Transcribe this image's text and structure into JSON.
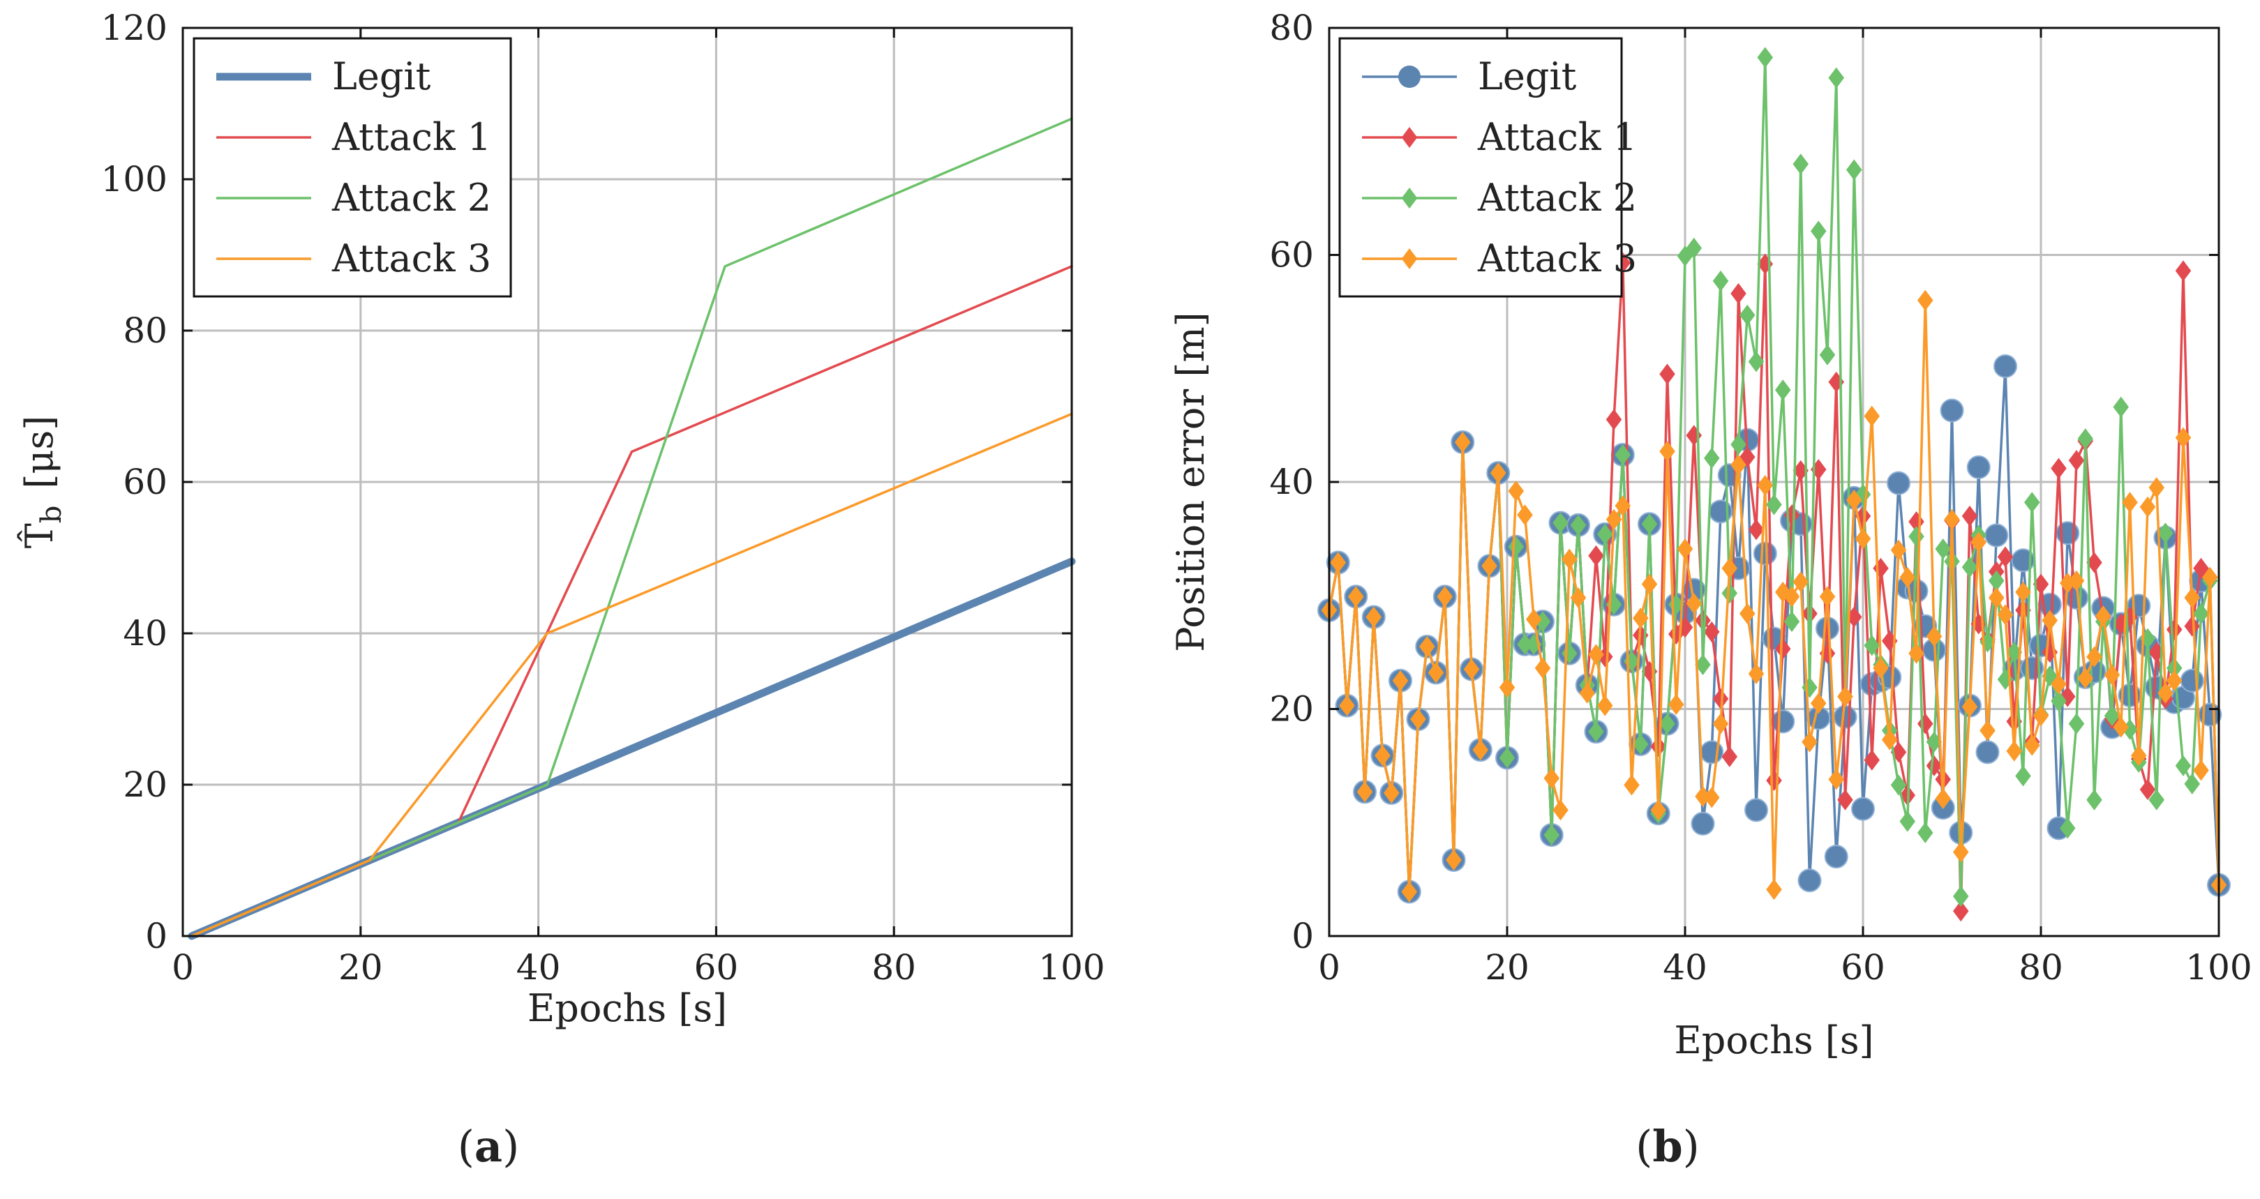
{
  "chart_data": [
    {
      "id": "a",
      "type": "line",
      "panel_label": {
        "open": "(",
        "letter": "a",
        "close": ")"
      },
      "xlabel": "Epochs [s]",
      "ylabel": {
        "symbol": "T̂",
        "subscript": "b",
        "unit": "[μs]"
      },
      "xlim": [
        0,
        100
      ],
      "ylim": [
        0,
        120
      ],
      "xticks": [
        0,
        20,
        40,
        60,
        80,
        100
      ],
      "yticks": [
        0,
        20,
        40,
        60,
        80,
        100,
        120
      ],
      "grid": true,
      "legend_position": "top-left",
      "series": [
        {
          "name": "Legit",
          "color": "#5b84b1",
          "width": "thick",
          "points": [
            [
              1,
              0
            ],
            [
              100,
              49.5
            ]
          ]
        },
        {
          "name": "Attack 1",
          "color": "#e34a4f",
          "width": "thin",
          "points": [
            [
              1,
              0
            ],
            [
              31,
              15
            ],
            [
              50.5,
              64
            ],
            [
              100,
              88.5
            ]
          ]
        },
        {
          "name": "Attack 2",
          "color": "#6cc16a",
          "width": "thin",
          "points": [
            [
              1,
              0
            ],
            [
              41,
              20
            ],
            [
              61,
              88.5
            ],
            [
              100,
              108
            ]
          ]
        },
        {
          "name": "Attack 3",
          "color": "#fb9a29",
          "width": "thin",
          "points": [
            [
              1,
              0
            ],
            [
              21,
              10
            ],
            [
              41,
              40
            ],
            [
              100,
              69
            ]
          ]
        }
      ]
    },
    {
      "id": "b",
      "type": "line",
      "panel_label": {
        "open": "(",
        "letter": "b",
        "close": ")"
      },
      "xlabel": "Epochs [s]",
      "ylabel": "Position error [m]",
      "xlim": [
        0,
        100
      ],
      "ylim": [
        0,
        80
      ],
      "xticks": [
        0,
        20,
        40,
        60,
        80,
        100
      ],
      "yticks": [
        0,
        20,
        40,
        60,
        80
      ],
      "grid": true,
      "legend_position": "top-left",
      "series": [
        {
          "name": "Legit",
          "color": "#5b84b1",
          "marker": "circle",
          "y": [
            28.7,
            32.9,
            20.3,
            29.9,
            12.7,
            28.1,
            15.9,
            12.6,
            22.5,
            3.9,
            19.1,
            25.5,
            23.2,
            29.9,
            6.7,
            43.5,
            23.5,
            16.4,
            32.6,
            40.8,
            15.7,
            34.3,
            25.7,
            25.7,
            27.7,
            8.9,
            36.4,
            24.9,
            36.2,
            22.1,
            18.0,
            35.4,
            29.2,
            42.4,
            24.2,
            16.9,
            36.3,
            10.8,
            18.7,
            29.2,
            28.5,
            30.5,
            9.9,
            16.2,
            37.4,
            40.6,
            32.4,
            43.7,
            11.1,
            33.7,
            26.2,
            18.9,
            36.6,
            36.3,
            4.9,
            19.2,
            27.1,
            7.0,
            19.3,
            38.6,
            11.2,
            22.2,
            22.5,
            22.8,
            39.9,
            30.7,
            30.4,
            27.3,
            25.2,
            11.3,
            46.3,
            9.1,
            20.3,
            41.3,
            16.2,
            35.3,
            50.2,
            23.5,
            33.1,
            23.6,
            25.6,
            29.2,
            9.5,
            35.5,
            29.8,
            22.8,
            23.3,
            28.9,
            18.4,
            27.5,
            21.2,
            29.1,
            25.6,
            21.9,
            35.1,
            20.6,
            21.0,
            22.5,
            31.3,
            19.5,
            4.5
          ]
        },
        {
          "name": "Attack 1",
          "color": "#e34a4f",
          "marker": "diamond",
          "y": [
            28.7,
            32.9,
            20.3,
            29.9,
            12.7,
            28.1,
            15.9,
            12.6,
            22.5,
            3.9,
            19.1,
            25.5,
            23.2,
            29.9,
            6.7,
            43.5,
            23.5,
            16.4,
            32.6,
            40.8,
            15.7,
            34.3,
            25.7,
            25.7,
            27.7,
            8.9,
            36.4,
            24.9,
            36.2,
            22.1,
            33.5,
            24.6,
            45.5,
            59.3,
            24.1,
            26.5,
            23.3,
            16.7,
            49.5,
            26.6,
            27.2,
            44.1,
            27.8,
            26.8,
            20.9,
            15.8,
            56.6,
            42.2,
            35.8,
            59.2,
            13.7,
            25.3,
            37.1,
            41.0,
            28.4,
            41.1,
            24.9,
            48.8,
            12.0,
            28.1,
            37.0,
            15.5,
            32.4,
            26.0,
            16.2,
            12.4,
            36.5,
            18.7,
            15.0,
            13.8,
            36.6,
            2.2,
            37.0,
            27.5,
            26.1,
            32.1,
            33.4,
            18.9,
            28.7,
            17.1,
            31.0,
            25.0,
            41.2,
            21.1,
            41.9,
            43.6,
            32.9,
            28.1,
            19.1,
            27.5,
            28.1,
            15.6,
            12.9,
            25.0,
            20.9,
            27.0,
            58.6,
            27.3,
            32.4,
            31.6,
            4.5
          ]
        },
        {
          "name": "Attack 2",
          "color": "#6cc16a",
          "marker": "diamond",
          "y": [
            28.7,
            32.9,
            20.3,
            29.9,
            12.7,
            28.1,
            15.9,
            12.6,
            22.5,
            3.9,
            19.1,
            25.5,
            23.2,
            29.9,
            6.7,
            43.5,
            23.5,
            16.4,
            32.6,
            40.8,
            15.7,
            34.3,
            25.7,
            25.7,
            27.7,
            8.9,
            36.4,
            24.9,
            36.2,
            22.1,
            18.0,
            35.4,
            29.2,
            42.4,
            24.2,
            16.9,
            36.3,
            10.8,
            18.7,
            29.2,
            59.9,
            60.6,
            23.9,
            42.1,
            57.7,
            30.2,
            43.3,
            54.7,
            50.6,
            77.4,
            38.0,
            48.1,
            27.7,
            68.0,
            21.9,
            62.1,
            51.2,
            75.6,
            21.1,
            67.5,
            38.9,
            25.6,
            23.9,
            18.1,
            13.3,
            10.1,
            35.2,
            9.1,
            17.1,
            34.1,
            33.0,
            3.5,
            32.5,
            35.3,
            25.9,
            31.3,
            22.6,
            25.0,
            14.1,
            38.2,
            19.5,
            22.9,
            20.7,
            9.5,
            18.7,
            43.8,
            12.0,
            27.7,
            19.4,
            46.6,
            18.2,
            15.3,
            26.2,
            12.0,
            35.5,
            23.6,
            15.0,
            13.4,
            28.4,
            31.3,
            4.5
          ]
        },
        {
          "name": "Attack 3",
          "color": "#fb9a29",
          "marker": "diamond",
          "y": [
            28.7,
            32.9,
            20.3,
            29.9,
            12.7,
            28.1,
            15.9,
            12.6,
            22.5,
            3.9,
            19.1,
            25.5,
            23.2,
            29.9,
            6.7,
            43.5,
            23.5,
            16.4,
            32.6,
            40.8,
            21.9,
            39.2,
            37.1,
            27.9,
            23.6,
            13.9,
            11.1,
            33.2,
            29.8,
            21.4,
            24.8,
            20.3,
            36.7,
            37.9,
            13.3,
            28.0,
            31.0,
            11.1,
            42.7,
            20.4,
            34.1,
            29.3,
            12.3,
            12.2,
            18.7,
            32.4,
            41.5,
            28.4,
            23.1,
            39.7,
            4.1,
            30.3,
            29.9,
            31.2,
            17.1,
            20.5,
            29.9,
            13.8,
            21.1,
            38.4,
            35.0,
            45.8,
            23.6,
            17.3,
            34.0,
            31.6,
            24.9,
            56.0,
            26.4,
            12.1,
            36.7,
            7.4,
            20.2,
            34.7,
            18.1,
            29.8,
            28.3,
            16.3,
            30.3,
            16.8,
            19.4,
            27.8,
            22.2,
            31.1,
            31.3,
            22.7,
            24.6,
            28.2,
            23.0,
            18.4,
            38.2,
            15.9,
            37.8,
            39.5,
            21.4,
            22.5,
            43.9,
            29.8,
            14.6,
            31.6,
            4.5
          ]
        }
      ]
    }
  ]
}
